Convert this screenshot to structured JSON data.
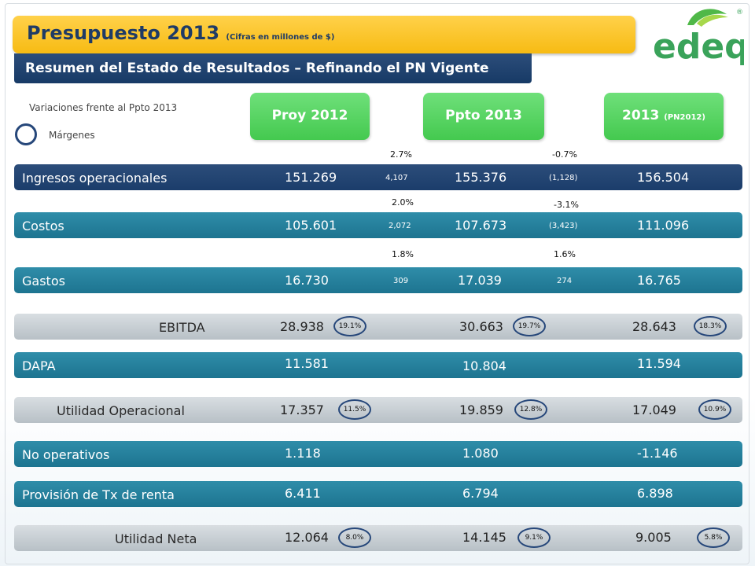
{
  "header": {
    "title": "Presupuesto 2013",
    "title_note": "(Cifras en millones de $)",
    "subtitle": "Resumen del Estado de Resultados – Refinando el PN Vigente",
    "logo_text": "edeq",
    "logo_mark": "®"
  },
  "legend": {
    "variations_note": "Variaciones frente al Ppto 2013",
    "margins_label": "Márgenes"
  },
  "columns": {
    "proy2012": "Proy 2012",
    "ppto2013": "Ppto 2013",
    "pn2013": "2013",
    "pn2013_note": "(PN2012)"
  },
  "rows": {
    "ingresos": {
      "label": "Ingresos operacionales",
      "v1": "151.269",
      "v2": "155.376",
      "v3": "156.504",
      "pct1": "2.7%",
      "delta1": "4,107",
      "pct2": "-0.7%",
      "delta2": "(1,128)"
    },
    "costos": {
      "label": "Costos",
      "v1": "105.601",
      "v2": "107.673",
      "v3": "111.096",
      "pct1": "2.0%",
      "delta1": "2,072",
      "pct2": "-3.1%",
      "delta2": "(3,423)"
    },
    "gastos": {
      "label": "Gastos",
      "v1": "16.730",
      "v2": "17.039",
      "v3": "16.765",
      "pct1": "1.8%",
      "delta1": "309",
      "pct2": "1.6%",
      "delta2": "274"
    },
    "ebitda": {
      "label": "EBITDA",
      "v1": "28.938",
      "v2": "30.663",
      "v3": "28.643",
      "m1": "19.1%",
      "m2": "19.7%",
      "m3": "18.3%"
    },
    "dapa": {
      "label": "DAPA",
      "v1": "11.581",
      "v2": "10.804",
      "v3": "11.594"
    },
    "utilidad_operacional": {
      "label": "Utilidad Operacional",
      "v1": "17.357",
      "v2": "19.859",
      "v3": "17.049",
      "m1": "11.5%",
      "m2": "12.8%",
      "m3": "10.9%"
    },
    "no_operativos": {
      "label": "No operativos",
      "v1": "1.118",
      "v2": "1.080",
      "v3": "-1.146"
    },
    "provision": {
      "label": "Provisión de Tx de renta",
      "v1": "6.411",
      "v2": "6.794",
      "v3": "6.898"
    },
    "utilidad_neta": {
      "label": "Utilidad Neta",
      "v1": "12.064",
      "v2": "14.145",
      "v3": "9.005",
      "m1": "8.0%",
      "m2": "9.1%",
      "m3": "5.8%"
    }
  },
  "colors": {
    "title_yellow": "#f7bb13",
    "navy": "#1b3d6b",
    "teal": "#1d7490",
    "green": "#44c94f",
    "grey": "#c4cbd0",
    "logo_green": "#3aa35a",
    "logo_teal": "#2b8fb0"
  }
}
